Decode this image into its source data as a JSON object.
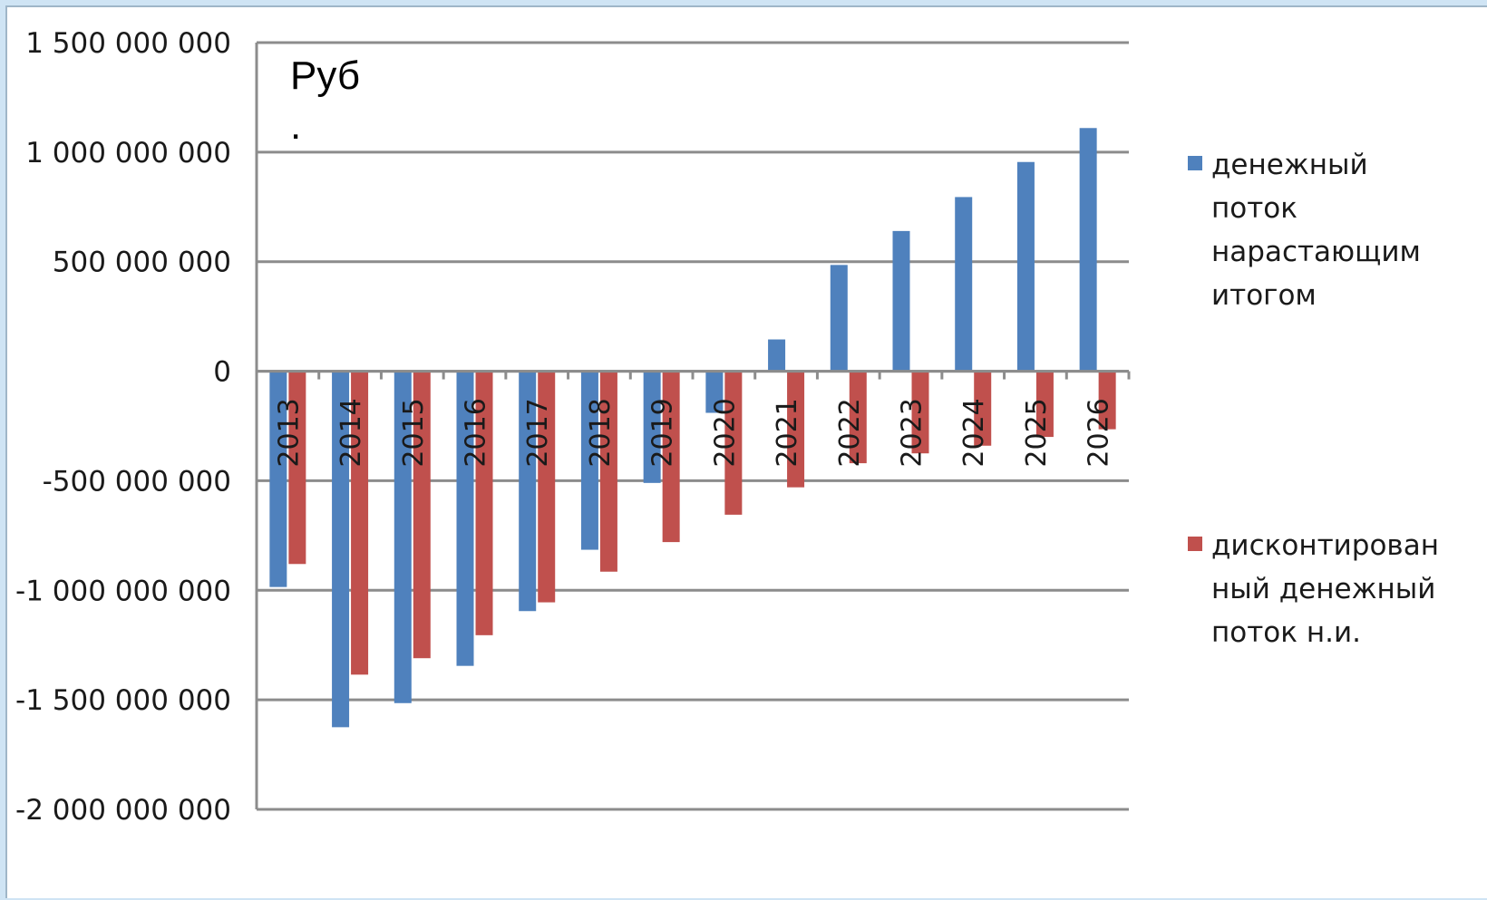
{
  "chart_data": {
    "type": "bar",
    "unit_label": [
      "Руб",
      "."
    ],
    "categories": [
      "2013",
      "2014",
      "2015",
      "2016",
      "2017",
      "2018",
      "2019",
      "2020",
      "2021",
      "2022",
      "2023",
      "2024",
      "2025",
      "2026"
    ],
    "series": [
      {
        "name": "денежный поток нарастающим итогом",
        "legend_lines": [
          "денежный",
          "поток",
          "нарастающим",
          "итогом"
        ],
        "color": "#4f81bd",
        "values": [
          -985000000,
          -1625000000,
          -1515000000,
          -1345000000,
          -1095000000,
          -815000000,
          -510000000,
          -190000000,
          145000000,
          485000000,
          640000000,
          795000000,
          955000000,
          1110000000
        ]
      },
      {
        "name": "дисконтированный денежный поток н.и.",
        "legend_lines": [
          "дисконтирован",
          "ный денежный",
          "поток н.и."
        ],
        "color": "#c0504d",
        "values": [
          -880000000,
          -1385000000,
          -1310000000,
          -1205000000,
          -1055000000,
          -915000000,
          -780000000,
          -655000000,
          -530000000,
          -420000000,
          -375000000,
          -340000000,
          -300000000,
          -265000000
        ]
      }
    ],
    "ylim": [
      -2000000000,
      1500000000
    ],
    "yticks": [
      1500000000,
      1000000000,
      500000000,
      0,
      -500000000,
      -1000000000,
      -1500000000,
      -2000000000
    ],
    "ytick_labels": [
      "1 500 000 000",
      "1 000 000 000",
      "500 000 000",
      "0",
      "-500 000 000",
      "-1 000 000 000",
      "-1 500 000 000",
      "-2 000 000 000"
    ],
    "grid": true,
    "legend_position": "right"
  }
}
